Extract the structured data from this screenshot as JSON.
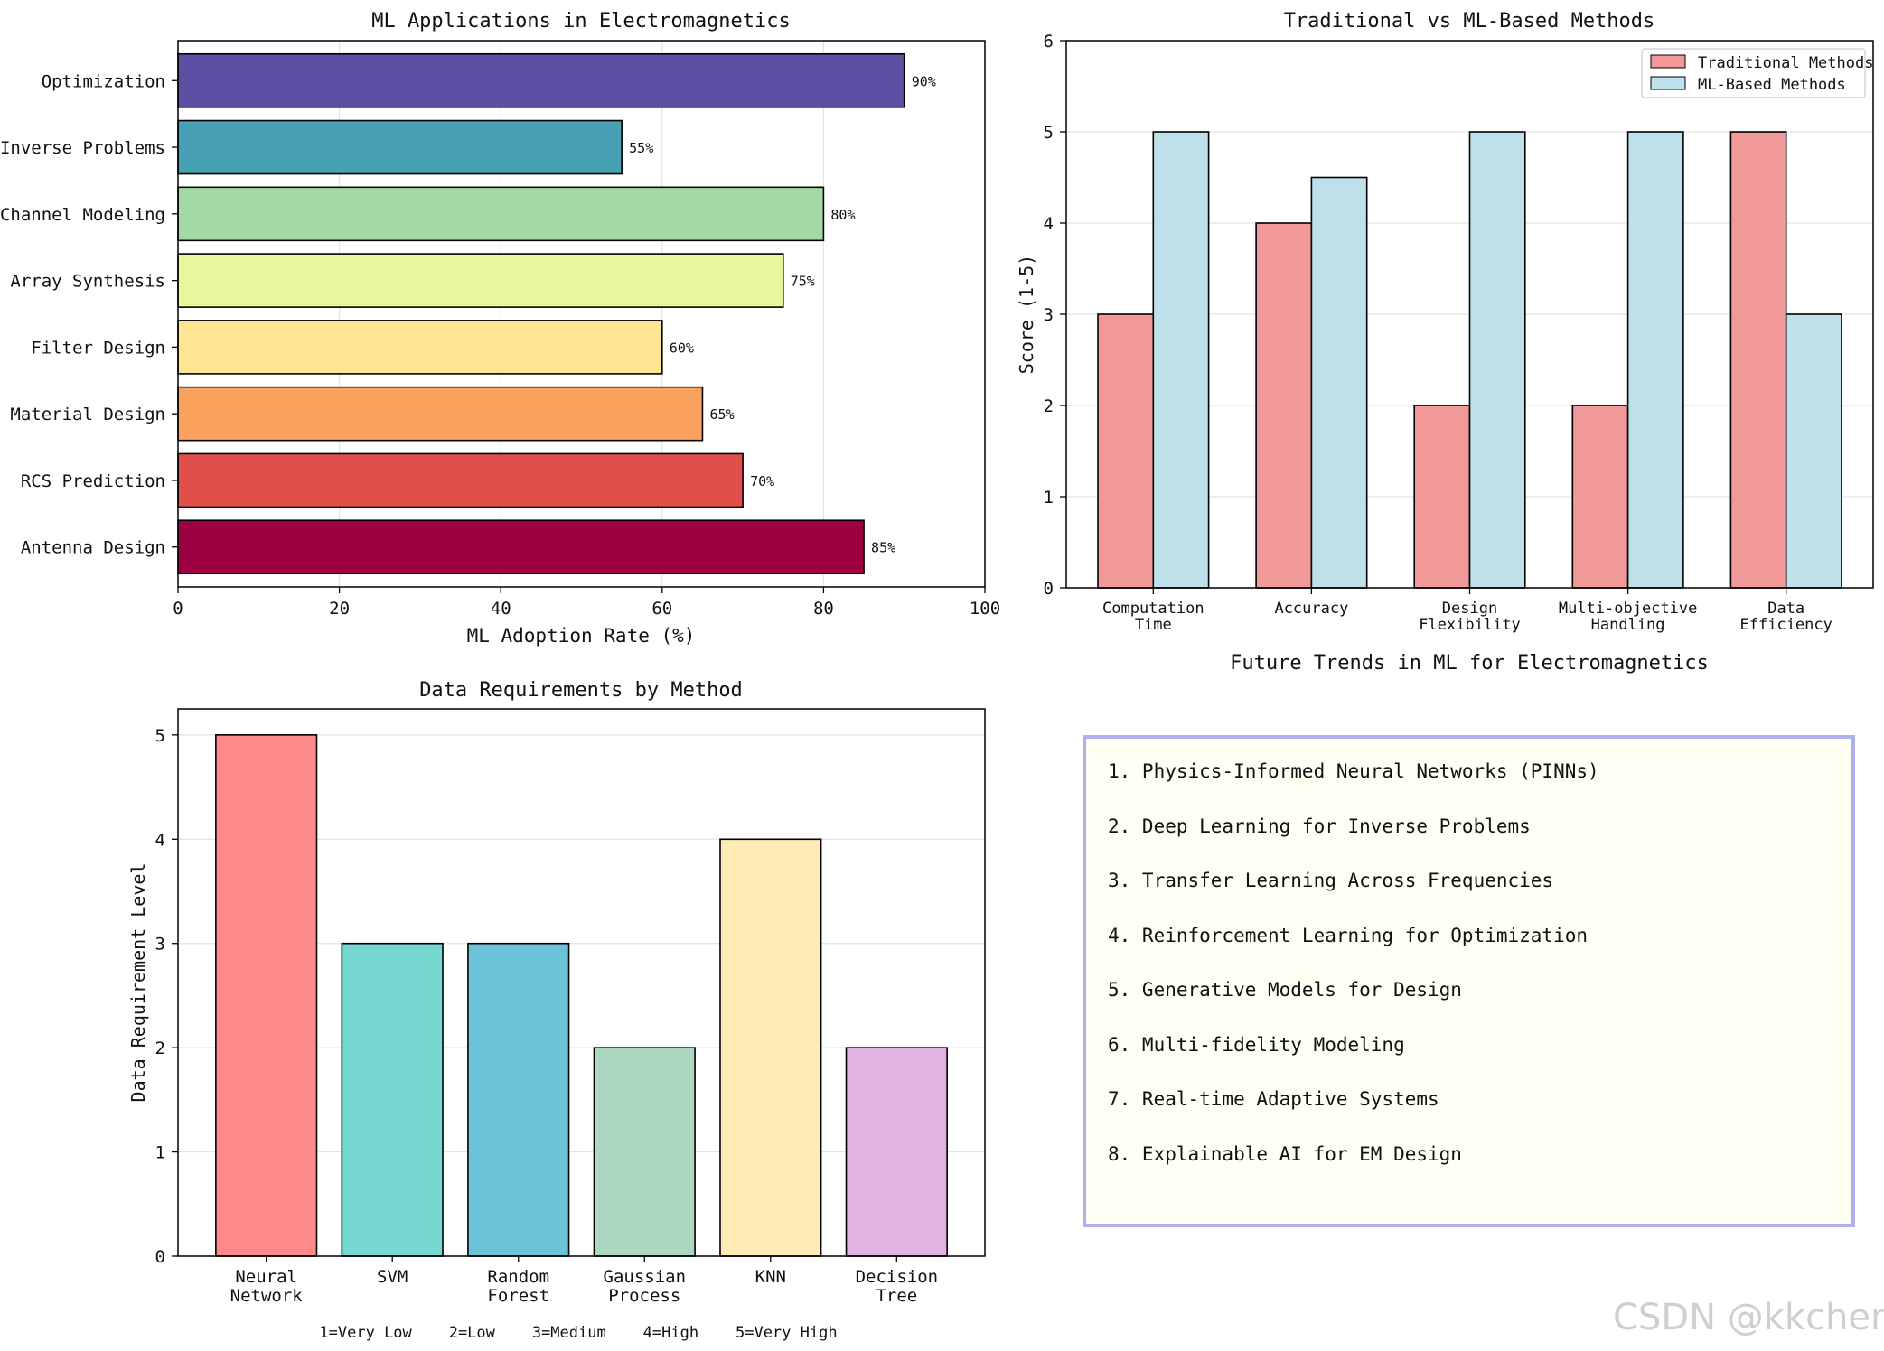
{
  "chart_data": [
    {
      "type": "bar",
      "orientation": "horizontal",
      "title": "ML Applications in Electromagnetics",
      "xlabel": "ML Adoption Rate (%)",
      "ylabel": "",
      "xlim": [
        0,
        100
      ],
      "xticks": [
        "0",
        "20",
        "40",
        "60",
        "80",
        "100"
      ],
      "grid": true,
      "categories": [
        "Antenna Design",
        "RCS Prediction",
        "Material Design",
        "Filter Design",
        "Array Synthesis",
        "Channel Modeling",
        "Inverse Problems",
        "Optimization"
      ],
      "values": [
        85,
        70,
        65,
        60,
        75,
        80,
        55,
        90
      ],
      "value_labels": [
        "85%",
        "70%",
        "65%",
        "60%",
        "75%",
        "80%",
        "55%",
        "90%"
      ],
      "colors": [
        "#9e0142",
        "#e14f4a",
        "#fba35e",
        "#fee593",
        "#ebf79e",
        "#a2d9a4",
        "#47a0b3",
        "#5e4fa2"
      ]
    },
    {
      "type": "bar",
      "title": "Traditional vs ML-Based Methods",
      "xlabel": "",
      "ylabel": "Score (1-5)",
      "ylim": [
        0,
        6
      ],
      "yticks": [
        "0",
        "1",
        "2",
        "3",
        "4",
        "5",
        "6"
      ],
      "grid": true,
      "legend_position": "top-right",
      "categories": [
        [
          "Computation",
          "Time"
        ],
        [
          "Accuracy"
        ],
        [
          "Design",
          "Flexibility"
        ],
        [
          "Multi-objective",
          "Handling"
        ],
        [
          "Data",
          "Efficiency"
        ]
      ],
      "series": [
        {
          "name": "Traditional Methods",
          "color": "#f19999",
          "values": [
            3,
            4,
            2,
            2,
            5
          ]
        },
        {
          "name": "ML-Based Methods",
          "color": "#bde0ea",
          "values": [
            5,
            4.5,
            5,
            5,
            3
          ]
        }
      ]
    },
    {
      "type": "bar",
      "title": "Data Requirements by Method",
      "xlabel": "",
      "ylabel": "Data Requirement Level",
      "ylim": [
        0,
        5.25
      ],
      "yticks": [
        "0",
        "1",
        "2",
        "3",
        "4",
        "5"
      ],
      "grid": true,
      "categories": [
        [
          "Neural",
          "Network"
        ],
        [
          "SVM"
        ],
        [
          "Random",
          "Forest"
        ],
        [
          "Gaussian",
          "Process"
        ],
        [
          "KNN"
        ],
        [
          "Decision",
          "Tree"
        ]
      ],
      "values": [
        5,
        3,
        3,
        2,
        4,
        2
      ],
      "colors": [
        "#ff8a8a",
        "#76d8d0",
        "#6ac3d8",
        "#acd8c2",
        "#feebb5",
        "#e2b2e2"
      ],
      "annotation": "1=Very Low    2=Low    3=Medium    4=High    5=Very High"
    }
  ],
  "trends": {
    "title": "Future Trends in ML for Electromagnetics",
    "items": [
      "1. Physics-Informed Neural Networks (PINNs)",
      "2. Deep Learning for Inverse Problems",
      "3. Transfer Learning Across Frequencies",
      "4. Reinforcement Learning for Optimization",
      "5. Generative Models for Design",
      "6. Multi-fidelity Modeling",
      "7. Real-time Adaptive Systems",
      "8. Explainable AI for EM Design"
    ]
  },
  "watermark": "CSDN @kkchenjj"
}
